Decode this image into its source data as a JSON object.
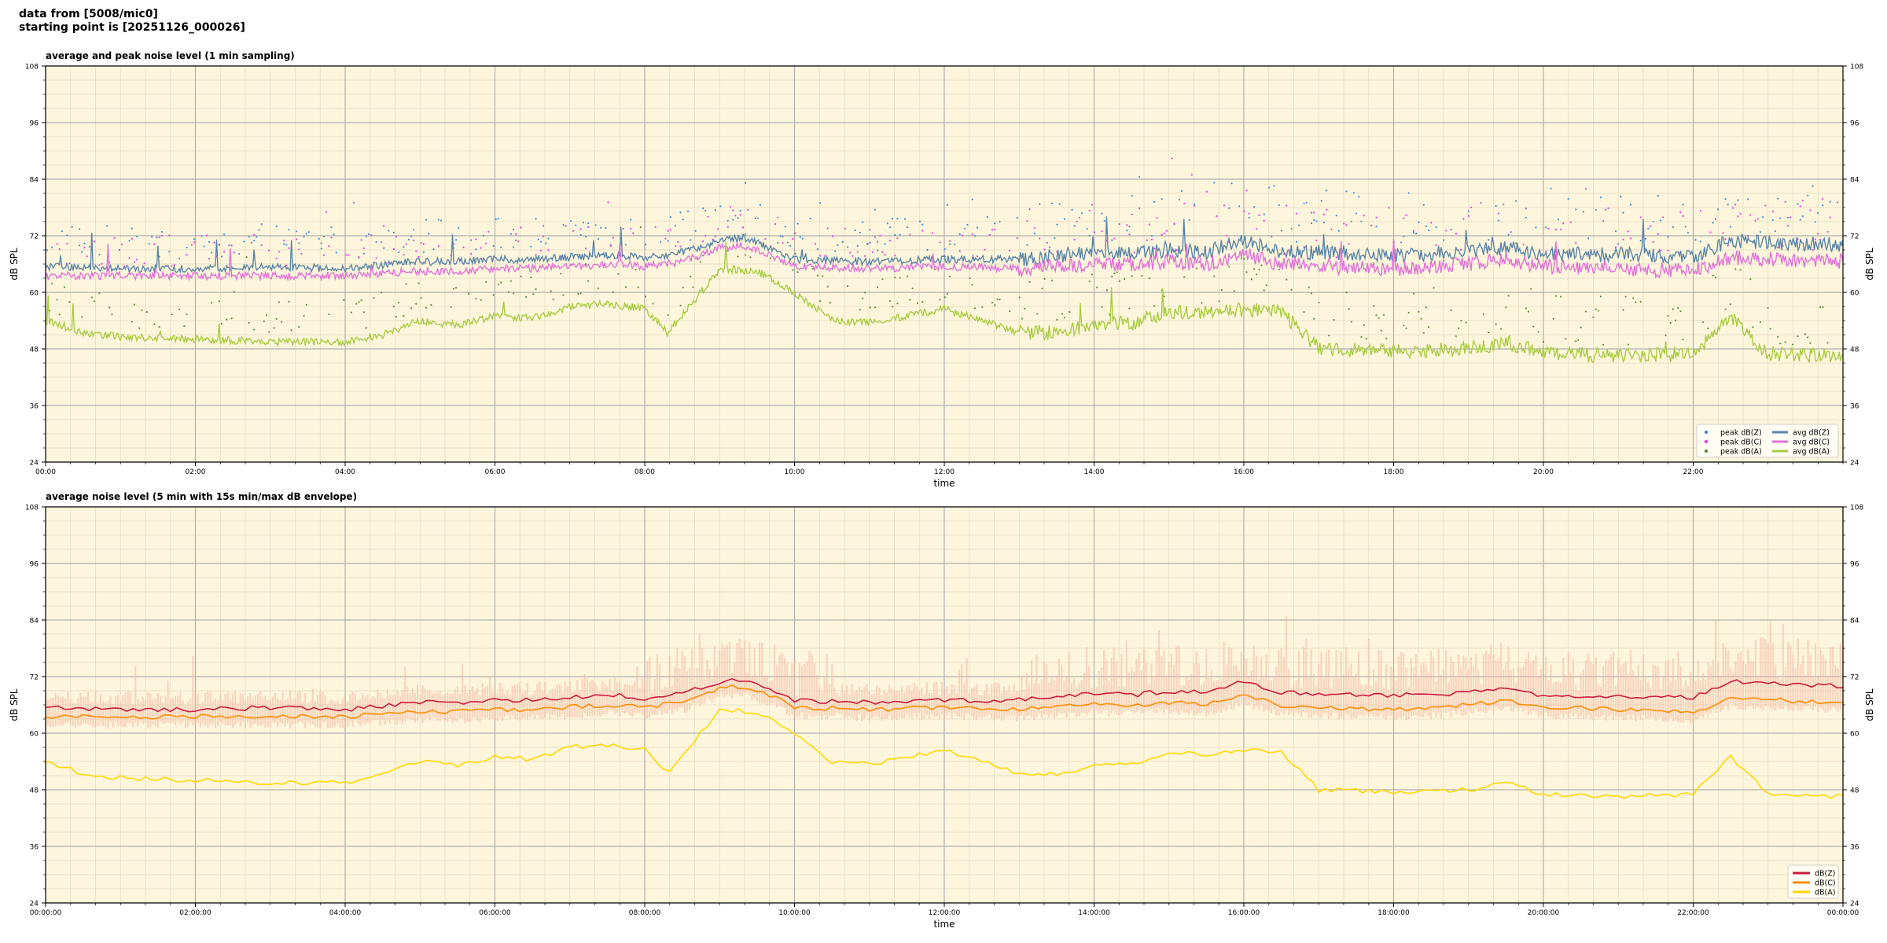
{
  "header": {
    "line1": "data from [5008/mic0]",
    "line2": "starting point is [20251126_000026]"
  },
  "chart_data": [
    {
      "type": "line",
      "title": "average and peak noise level (1 min sampling)",
      "xlabel": "time",
      "ylabel": "dB SPL",
      "ylabel_right": "dB SPL",
      "xlim": [
        0,
        24
      ],
      "ylim": [
        24,
        108
      ],
      "yticks": [
        24,
        36,
        48,
        60,
        72,
        84,
        96,
        108
      ],
      "xticks": [
        0,
        2,
        4,
        6,
        8,
        10,
        12,
        14,
        16,
        18,
        20,
        22
      ],
      "xtick_labels": [
        "00:00",
        "02:00",
        "04:00",
        "06:00",
        "08:00",
        "10:00",
        "12:00",
        "14:00",
        "16:00",
        "18:00",
        "20:00",
        "22:00"
      ],
      "grid": true,
      "background": "#fdf6dc",
      "legend_placement": "lower-right",
      "legend_columns": 2,
      "legend": [
        {
          "label": "peak dB(Z)",
          "kind": "dot",
          "color": "#3b8fd6"
        },
        {
          "label": "peak dB(C)",
          "kind": "dot",
          "color": "#e83be0"
        },
        {
          "label": "peak dB(A)",
          "kind": "dot",
          "color": "#5f8f3f"
        },
        {
          "label": "avg dB(Z)",
          "kind": "line",
          "color": "#5a85a8"
        },
        {
          "label": "avg dB(C)",
          "kind": "line",
          "color": "#e070d8"
        },
        {
          "label": "avg dB(A)",
          "kind": "line",
          "color": "#a8cc42"
        }
      ],
      "series": [
        {
          "name": "avg dB(Z)",
          "color": "#5a85a8",
          "x": [
            0,
            1,
            2,
            3,
            4,
            4.9,
            5.5,
            6,
            6.5,
            7,
            7.7,
            8,
            8.5,
            9,
            9.3,
            9.6,
            10,
            11,
            12,
            13,
            14,
            14.5,
            15,
            15.5,
            16,
            16.5,
            17,
            18,
            19,
            19.5,
            20,
            21,
            22,
            22.5,
            23,
            24
          ],
          "y": [
            65.5,
            65.0,
            65.0,
            65.5,
            65.0,
            66.5,
            66.5,
            67.0,
            67.0,
            67.5,
            68.0,
            67.0,
            68.5,
            71.0,
            71.5,
            70.0,
            67.0,
            66.5,
            67.0,
            67.0,
            68.5,
            68.0,
            69.0,
            68.5,
            71.0,
            68.5,
            68.5,
            68.0,
            68.5,
            69.5,
            68.0,
            68.0,
            67.5,
            71.0,
            70.5,
            70.0
          ]
        },
        {
          "name": "avg dB(C)",
          "color": "#e070d8",
          "x": [
            0,
            1,
            2,
            3,
            4,
            4.9,
            5.5,
            6,
            6.5,
            7,
            7.7,
            8,
            8.5,
            9,
            9.3,
            9.6,
            10,
            11,
            12,
            13,
            14,
            14.5,
            15,
            15.5,
            16,
            16.5,
            17,
            18,
            19,
            19.5,
            20,
            21,
            22,
            22.5,
            23,
            24
          ],
          "y": [
            63.5,
            63.5,
            63.5,
            63.5,
            63.5,
            64.5,
            64.5,
            65.0,
            65.0,
            65.5,
            66.0,
            65.5,
            66.5,
            69.5,
            70.0,
            68.5,
            65.5,
            65.0,
            65.5,
            65.0,
            66.0,
            66.0,
            66.5,
            66.0,
            68.0,
            66.0,
            65.5,
            65.0,
            66.0,
            67.0,
            65.5,
            65.0,
            64.5,
            67.5,
            67.0,
            66.5
          ]
        },
        {
          "name": "avg dB(A)",
          "color": "#a8cc42",
          "x": [
            0,
            0.5,
            1,
            2,
            3,
            4,
            4.5,
            5,
            5.5,
            6,
            6.5,
            7,
            7.5,
            8,
            8.3,
            8.6,
            9,
            9.5,
            10,
            10.5,
            11,
            12,
            13,
            13.5,
            14,
            14.5,
            15,
            15.5,
            16,
            16.5,
            17,
            18,
            19,
            19.5,
            20,
            21,
            22,
            22.5,
            23,
            24
          ],
          "y": [
            54.0,
            51.5,
            50.5,
            50.0,
            49.5,
            49.5,
            51.0,
            54.0,
            53.0,
            55.0,
            54.5,
            57.0,
            57.5,
            56.5,
            51.5,
            57.0,
            65.0,
            64.5,
            60.0,
            54.0,
            53.5,
            56.5,
            51.5,
            51.5,
            53.0,
            53.5,
            56.0,
            55.5,
            56.5,
            56.0,
            48.0,
            47.5,
            48.0,
            49.5,
            47.0,
            46.5,
            47.0,
            55.0,
            47.0,
            46.5
          ]
        }
      ],
      "scatter_series": [
        {
          "name": "peak dB(Z)",
          "color": "#3b8fd6"
        },
        {
          "name": "peak dB(C)",
          "color": "#e83be0"
        },
        {
          "name": "peak dB(A)",
          "color": "#5f8f3f"
        }
      ]
    },
    {
      "type": "line",
      "title": "average noise level (5 min with 15s min/max dB envelope)",
      "xlabel": "time",
      "ylabel": "dB SPL",
      "ylabel_right": "dB SPL",
      "xlim": [
        0,
        24
      ],
      "ylim": [
        24,
        108
      ],
      "yticks": [
        24,
        36,
        48,
        60,
        72,
        84,
        96,
        108
      ],
      "xticks": [
        0,
        2,
        4,
        6,
        8,
        10,
        12,
        14,
        16,
        18,
        20,
        22,
        24
      ],
      "xtick_labels": [
        "00:00:00",
        "02:00:00",
        "04:00:00",
        "06:00:00",
        "08:00:00",
        "10:00:00",
        "12:00:00",
        "14:00:00",
        "16:00:00",
        "18:00:00",
        "20:00:00",
        "22:00:00",
        "00:00:00"
      ],
      "grid": true,
      "background": "#fdf6dc",
      "legend_placement": "lower-right",
      "legend": [
        {
          "label": "dB(Z)",
          "kind": "line",
          "color": "#cc1a3d"
        },
        {
          "label": "dB(C)",
          "kind": "line",
          "color": "#ff8c00"
        },
        {
          "label": "dB(A)",
          "kind": "line",
          "color": "#ffd700"
        }
      ],
      "envelope": {
        "color": "#f4b8a6"
      },
      "series": [
        {
          "name": "dB(Z)",
          "color": "#cc1a3d",
          "x": [
            0,
            1,
            2,
            3,
            4,
            4.9,
            5.5,
            6,
            6.5,
            7,
            7.7,
            8,
            8.5,
            9,
            9.3,
            9.6,
            10,
            11,
            12,
            13,
            14,
            14.5,
            15,
            15.5,
            16,
            16.5,
            17,
            18,
            19,
            19.5,
            20,
            21,
            22,
            22.5,
            23,
            24
          ],
          "y": [
            65.5,
            65.0,
            65.0,
            65.5,
            65.0,
            66.5,
            66.5,
            67.0,
            67.0,
            67.5,
            68.0,
            67.0,
            68.5,
            71.0,
            71.5,
            70.0,
            67.0,
            66.5,
            67.0,
            67.0,
            68.5,
            68.0,
            69.0,
            68.5,
            71.0,
            68.5,
            68.5,
            68.0,
            68.5,
            69.5,
            68.0,
            68.0,
            67.5,
            71.0,
            70.5,
            70.0
          ]
        },
        {
          "name": "dB(C)",
          "color": "#ff8c00",
          "x": [
            0,
            1,
            2,
            3,
            4,
            4.9,
            5.5,
            6,
            6.5,
            7,
            7.7,
            8,
            8.5,
            9,
            9.3,
            9.6,
            10,
            11,
            12,
            13,
            14,
            14.5,
            15,
            15.5,
            16,
            16.5,
            17,
            18,
            19,
            19.5,
            20,
            21,
            22,
            22.5,
            23,
            24
          ],
          "y": [
            63.5,
            63.5,
            63.5,
            63.5,
            63.5,
            64.5,
            64.5,
            65.0,
            65.0,
            65.5,
            66.0,
            65.5,
            66.5,
            69.5,
            70.0,
            68.5,
            65.5,
            65.0,
            65.5,
            65.0,
            66.0,
            66.0,
            66.5,
            66.0,
            68.0,
            66.0,
            65.5,
            65.0,
            66.0,
            67.0,
            65.5,
            65.0,
            64.5,
            67.5,
            67.0,
            66.5
          ]
        },
        {
          "name": "dB(A)",
          "color": "#ffd700",
          "x": [
            0,
            0.5,
            1,
            2,
            3,
            4,
            4.5,
            5,
            5.5,
            6,
            6.5,
            7,
            7.5,
            8,
            8.3,
            8.6,
            9,
            9.5,
            10,
            10.5,
            11,
            12,
            13,
            13.5,
            14,
            14.5,
            15,
            15.5,
            16,
            16.5,
            17,
            18,
            19,
            19.5,
            20,
            21,
            22,
            22.5,
            23,
            24
          ],
          "y": [
            54.0,
            51.5,
            50.5,
            50.0,
            49.5,
            49.5,
            51.0,
            54.0,
            53.0,
            55.0,
            54.5,
            57.0,
            57.5,
            56.5,
            51.5,
            57.0,
            65.0,
            64.5,
            60.0,
            54.0,
            53.5,
            56.5,
            51.5,
            51.5,
            53.0,
            53.5,
            56.0,
            55.5,
            56.5,
            56.0,
            48.0,
            47.5,
            48.0,
            49.5,
            47.0,
            46.5,
            47.0,
            55.0,
            47.0,
            46.5
          ]
        }
      ]
    }
  ]
}
